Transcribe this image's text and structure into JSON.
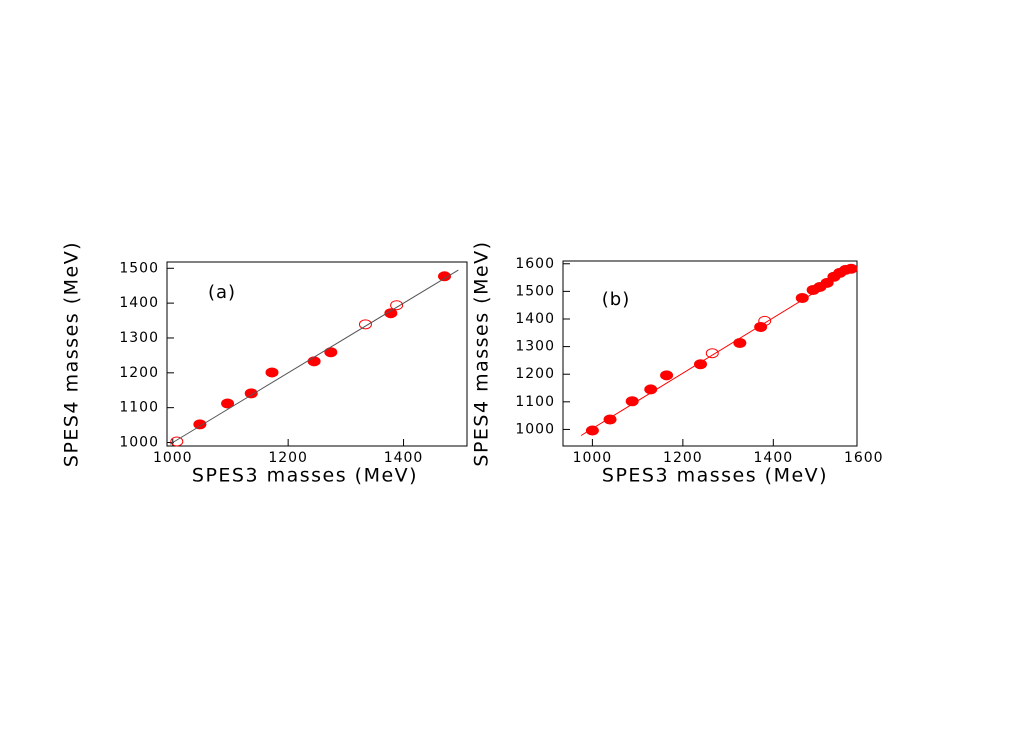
{
  "chart_data": [
    {
      "type": "scatter",
      "annotation": "(a)",
      "x_label": "SPES3 masses (MeV)",
      "y_label": "SPES4 masses (MeV)",
      "xlim": [
        990,
        1510
      ],
      "ylim": [
        990,
        1518
      ],
      "xticks": [
        1000,
        1200,
        1400
      ],
      "yticks": [
        1000,
        1100,
        1200,
        1300,
        1400,
        1500
      ],
      "series": [
        {
          "style": "filled",
          "color": "#ff0000",
          "x": [
            1047,
            1095,
            1136,
            1172,
            1245,
            1274,
            1378,
            1471
          ],
          "values": [
            1052,
            1112,
            1141,
            1201,
            1233,
            1259,
            1371,
            1477
          ]
        },
        {
          "style": "open",
          "color": "#ff0000",
          "x": [
            1007,
            1334,
            1388
          ],
          "values": [
            1003,
            1339,
            1394
          ]
        },
        {
          "style": "line",
          "color": "#555555",
          "x": [
            995,
            1495
          ],
          "values": [
            995,
            1495
          ]
        }
      ]
    },
    {
      "type": "scatter",
      "annotation": "(b)",
      "x_label": "SPES3 masses (MeV)",
      "y_label": "SPES4 masses (MeV)",
      "xlim": [
        935,
        1585
      ],
      "ylim": [
        940,
        1610
      ],
      "xticks": [
        1000,
        1200,
        1400,
        1600
      ],
      "yticks": [
        1000,
        1100,
        1200,
        1300,
        1400,
        1500,
        1600
      ],
      "series": [
        {
          "style": "filled",
          "color": "#ff0000",
          "x": [
            1000,
            1039,
            1088,
            1129,
            1164,
            1239,
            1326,
            1372,
            1464,
            1488,
            1503,
            1519,
            1534,
            1547,
            1560,
            1572
          ],
          "values": [
            996,
            1036,
            1102,
            1145,
            1196,
            1236,
            1313,
            1371,
            1476,
            1505,
            1516,
            1531,
            1553,
            1567,
            1578,
            1582
          ]
        },
        {
          "style": "open",
          "color": "#ff0000",
          "x": [
            1265,
            1381
          ],
          "values": [
            1276,
            1393
          ]
        },
        {
          "style": "line",
          "color": "#ff0000",
          "x": [
            975,
            1575
          ],
          "values": [
            978,
            1580
          ]
        }
      ]
    }
  ]
}
